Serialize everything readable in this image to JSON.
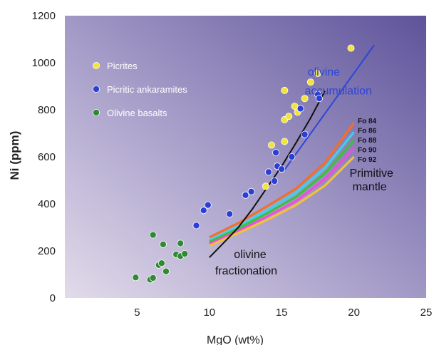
{
  "chart_data": {
    "type": "scatter",
    "xlabel": "MgO (wt%)",
    "ylabel": "Ni (ppm)",
    "xlim": [
      0,
      25
    ],
    "ylim": [
      0,
      1200
    ],
    "x_ticks": [
      5,
      10,
      15,
      20,
      25
    ],
    "y_ticks": [
      0,
      200,
      400,
      600,
      800,
      1000,
      1200
    ],
    "colors": {
      "background_light": "#dcd3e6",
      "background_dark": "#6d62a3",
      "picrites": "#f2e43a",
      "picritic_ankaramites": "#2b3fd6",
      "olivine_basalts": "#2f8a34",
      "fractionation": "#111111",
      "accumulation": "#2d46d8",
      "annotation_text": "#2d46d8"
    },
    "legend": {
      "placement": "top-left",
      "entries": [
        {
          "label": "Picrites",
          "series": "picrites"
        },
        {
          "label": "Picritic ankaramites",
          "series": "picritic_ankaramites"
        },
        {
          "label": "Olivine basalts",
          "series": "olivine_basalts"
        }
      ]
    },
    "series": [
      {
        "name": "Picrites",
        "key": "picrites",
        "points": [
          [
            13.9,
            475
          ],
          [
            14.3,
            650
          ],
          [
            15.2,
            665
          ],
          [
            15.2,
            758
          ],
          [
            15.5,
            772
          ],
          [
            15.2,
            882
          ],
          [
            15.9,
            815
          ],
          [
            16.1,
            790
          ],
          [
            16.6,
            848
          ],
          [
            17.0,
            918
          ],
          [
            17.5,
            955
          ],
          [
            19.8,
            1062
          ]
        ]
      },
      {
        "name": "Picritic ankaramites",
        "key": "picritic_ankaramites",
        "points": [
          [
            9.1,
            308
          ],
          [
            9.6,
            372
          ],
          [
            9.9,
            395
          ],
          [
            11.4,
            357
          ],
          [
            12.5,
            437
          ],
          [
            12.9,
            452
          ],
          [
            14.1,
            535
          ],
          [
            14.5,
            497
          ],
          [
            14.7,
            560
          ],
          [
            15.0,
            548
          ],
          [
            14.6,
            618
          ],
          [
            15.7,
            600
          ],
          [
            16.3,
            805
          ],
          [
            16.6,
            695
          ],
          [
            17.5,
            865
          ],
          [
            17.6,
            848
          ]
        ]
      },
      {
        "name": "Olivine basalts",
        "key": "olivine_basalts",
        "points": [
          [
            4.9,
            87
          ],
          [
            5.9,
            78
          ],
          [
            6.1,
            85
          ],
          [
            6.1,
            268
          ],
          [
            6.5,
            140
          ],
          [
            6.7,
            148
          ],
          [
            6.8,
            228
          ],
          [
            7.0,
            113
          ],
          [
            7.7,
            185
          ],
          [
            8.0,
            178
          ],
          [
            8.0,
            232
          ],
          [
            8.3,
            188
          ]
        ]
      }
    ],
    "lines": [
      {
        "name": "olivine fractionation",
        "key": "fractionation",
        "points": [
          [
            10.0,
            172
          ],
          [
            11.0,
            235
          ],
          [
            12.0,
            300
          ],
          [
            13.0,
            380
          ],
          [
            14.0,
            470
          ],
          [
            15.0,
            560
          ],
          [
            16.0,
            660
          ],
          [
            17.0,
            765
          ],
          [
            18.0,
            880
          ]
        ]
      },
      {
        "name": "olivine accumulation",
        "key": "accumulation",
        "points": [
          [
            15.2,
            545
          ],
          [
            21.4,
            1075
          ]
        ]
      }
    ],
    "fo_curves": [
      {
        "label": "Fo 84",
        "color": "#f26e2a",
        "points": [
          [
            10.0,
            258
          ],
          [
            12.0,
            318
          ],
          [
            14.0,
            390
          ],
          [
            16.0,
            465
          ],
          [
            18.0,
            575
          ],
          [
            20.0,
            745
          ]
        ]
      },
      {
        "label": "Fo 86",
        "color": "#3fd0e8",
        "points": [
          [
            10.0,
            245
          ],
          [
            12.0,
            304
          ],
          [
            14.0,
            372
          ],
          [
            16.0,
            448
          ],
          [
            18.0,
            552
          ],
          [
            20.0,
            705
          ]
        ]
      },
      {
        "label": "Fo 88",
        "color": "#3fbf3b",
        "points": [
          [
            10.0,
            238
          ],
          [
            12.0,
            295
          ],
          [
            14.0,
            360
          ],
          [
            16.0,
            430
          ],
          [
            18.0,
            530
          ],
          [
            20.0,
            670
          ]
        ]
      },
      {
        "label": "Fo 90",
        "color": "#ee4fd6",
        "points": [
          [
            10.0,
            230
          ],
          [
            12.0,
            285
          ],
          [
            14.0,
            346
          ],
          [
            16.0,
            412
          ],
          [
            18.0,
            505
          ],
          [
            20.0,
            635
          ]
        ]
      },
      {
        "label": "Fo 92",
        "color": "#f0c23a",
        "points": [
          [
            10.0,
            222
          ],
          [
            12.0,
            276
          ],
          [
            14.0,
            332
          ],
          [
            16.0,
            395
          ],
          [
            18.0,
            478
          ],
          [
            20.0,
            600
          ]
        ]
      }
    ],
    "annotations": [
      {
        "text": "olivine",
        "x": 16.8,
        "y": 945,
        "color": "#2d46d8"
      },
      {
        "text": "accumulation",
        "x": 16.6,
        "y": 865,
        "color": "#2d46d8"
      },
      {
        "text": "Primitive",
        "x": 19.7,
        "y": 515,
        "color": "#111111"
      },
      {
        "text": "mantle",
        "x": 19.9,
        "y": 458,
        "color": "#111111"
      },
      {
        "text": "olivine",
        "x": 11.7,
        "y": 170,
        "color": "#111111"
      },
      {
        "text": "fractionation",
        "x": 10.4,
        "y": 100,
        "color": "#111111"
      }
    ]
  }
}
